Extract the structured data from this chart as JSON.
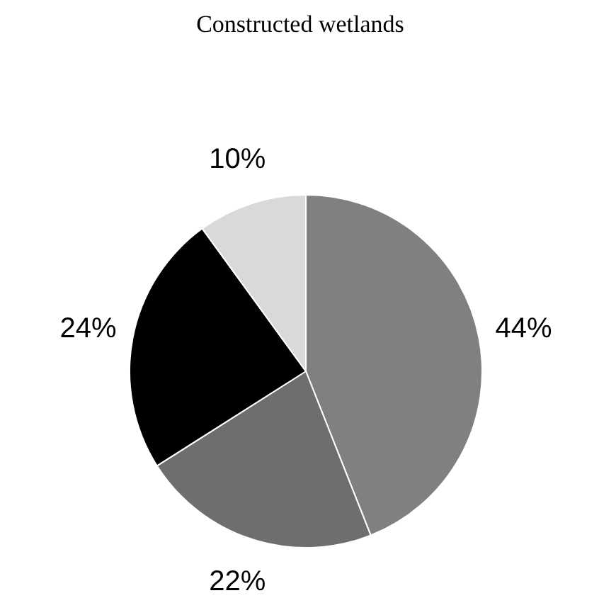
{
  "chart_data": {
    "type": "pie",
    "title": "Constructed wetlands",
    "categories": [
      null,
      null,
      null,
      null
    ],
    "values": [
      44,
      22,
      24,
      10
    ],
    "colors": [
      "#808080",
      "#6e6e6e",
      "#000000",
      "#d9d9d9"
    ],
    "value_labels": [
      "44%",
      "22%",
      "24%",
      "10%"
    ],
    "legend": false
  }
}
